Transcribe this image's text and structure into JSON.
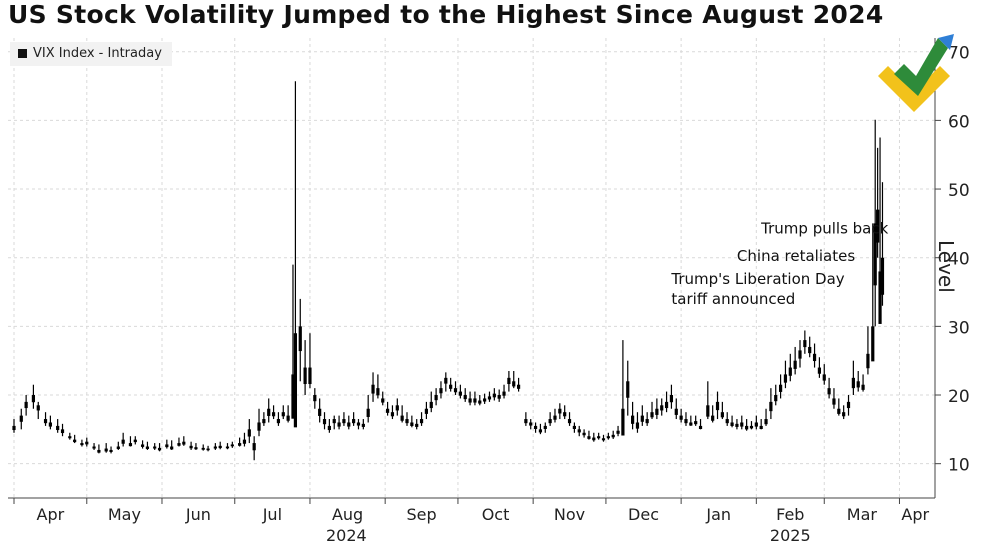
{
  "chart_data": {
    "type": "candlestick",
    "title": "US Stock Volatility Jumped to the Highest Since August 2024",
    "legend": "VIX Index - Intraday",
    "ylabel": "Level",
    "ylim": [
      5,
      72
    ],
    "yticks": [
      10,
      20,
      30,
      40,
      50,
      60,
      70
    ],
    "months": [
      {
        "label": "Apr",
        "start": 0
      },
      {
        "label": "May",
        "start": 30
      },
      {
        "label": "Jun",
        "start": 61
      },
      {
        "label": "Jul",
        "start": 91
      },
      {
        "label": "Aug",
        "start": 122
      },
      {
        "label": "Sep",
        "start": 153
      },
      {
        "label": "Oct",
        "start": 183
      },
      {
        "label": "Nov",
        "start": 214
      },
      {
        "label": "Dec",
        "start": 244
      },
      {
        "label": "Jan",
        "start": 275
      },
      {
        "label": "Feb",
        "start": 306
      },
      {
        "label": "Mar",
        "start": 334
      },
      {
        "label": "Apr",
        "start": 365
      }
    ],
    "years": [
      {
        "label": "2024",
        "day": 137
      },
      {
        "label": "2025",
        "day": 320
      }
    ],
    "total_days": 378,
    "points": [
      [
        0,
        15.5,
        14.5,
        16.5
      ],
      [
        3,
        17,
        15,
        18
      ],
      [
        5,
        19,
        17,
        20
      ],
      [
        8,
        20,
        18,
        21.5
      ],
      [
        10,
        18.5,
        16.5,
        19
      ],
      [
        13,
        16.5,
        15.5,
        17.5
      ],
      [
        15,
        16,
        15,
        17
      ],
      [
        18,
        15.5,
        14.5,
        16.5
      ],
      [
        20,
        15,
        14,
        15.8
      ],
      [
        23,
        14,
        13.5,
        14.5
      ],
      [
        25,
        13.5,
        13,
        14.2
      ],
      [
        28,
        13,
        12.5,
        13.5
      ],
      [
        30,
        13.2,
        12.5,
        13.8
      ],
      [
        33,
        12.5,
        12,
        13
      ],
      [
        35,
        12,
        11.5,
        12.8
      ],
      [
        38,
        12.2,
        11.6,
        13
      ],
      [
        40,
        12,
        11.5,
        12.5
      ],
      [
        43,
        12.5,
        12,
        13.2
      ],
      [
        45,
        13.5,
        12.5,
        14.5
      ],
      [
        48,
        13,
        12.5,
        14
      ],
      [
        50,
        13.5,
        12.8,
        14
      ],
      [
        53,
        12.8,
        12.2,
        13.4
      ],
      [
        55,
        12.5,
        12,
        13.2
      ],
      [
        58,
        12.5,
        12,
        13
      ],
      [
        60,
        12.3,
        11.8,
        13
      ],
      [
        63,
        12.8,
        12.2,
        13.5
      ],
      [
        65,
        12.5,
        12,
        13.4
      ],
      [
        68,
        13,
        12.5,
        13.8
      ],
      [
        70,
        13.2,
        12.6,
        14
      ],
      [
        73,
        12.6,
        12,
        13.2
      ],
      [
        75,
        12.4,
        12,
        13
      ],
      [
        78,
        12.3,
        11.9,
        12.8
      ],
      [
        80,
        12.2,
        11.8,
        12.6
      ],
      [
        83,
        12.5,
        12,
        13
      ],
      [
        85,
        12.6,
        12.1,
        13.2
      ],
      [
        88,
        12.5,
        12.1,
        13
      ],
      [
        90,
        12.8,
        12.3,
        13.2
      ],
      [
        93,
        13,
        12.5,
        13.8
      ],
      [
        95,
        13.5,
        12.5,
        14.5
      ],
      [
        97,
        15,
        13,
        16.5
      ],
      [
        99,
        13,
        10.5,
        14
      ],
      [
        101,
        16,
        14,
        18
      ],
      [
        103,
        16.5,
        15.5,
        17.5
      ],
      [
        105,
        18,
        16,
        19.5
      ],
      [
        107,
        17.5,
        16.5,
        18.5
      ],
      [
        109,
        16.5,
        15.5,
        17.5
      ],
      [
        111,
        17.5,
        16.5,
        18.5
      ],
      [
        113,
        17,
        16,
        18.5
      ],
      [
        115,
        23,
        17.5,
        39
      ],
      [
        116,
        29,
        20,
        65.7
      ],
      [
        118,
        30,
        22,
        34
      ],
      [
        120,
        24,
        20,
        28
      ],
      [
        122,
        24,
        21,
        29
      ],
      [
        124,
        20,
        18,
        21
      ],
      [
        126,
        18,
        16,
        19.5
      ],
      [
        128,
        16.5,
        15,
        17.5
      ],
      [
        130,
        15.5,
        14.5,
        16.5
      ],
      [
        132,
        16.5,
        15,
        17
      ],
      [
        134,
        16,
        15,
        17
      ],
      [
        136,
        16.5,
        15.5,
        17.5
      ],
      [
        138,
        16,
        15,
        17
      ],
      [
        140,
        16.5,
        15.5,
        17.5
      ],
      [
        142,
        16,
        15,
        16.5
      ],
      [
        144,
        15.8,
        15,
        16.5
      ],
      [
        146,
        18,
        16,
        20
      ],
      [
        148,
        21.5,
        19,
        23.3
      ],
      [
        150,
        21,
        19.5,
        23
      ],
      [
        152,
        19.5,
        18.5,
        20.5
      ],
      [
        154,
        18,
        17,
        19
      ],
      [
        156,
        17.5,
        16.5,
        18.5
      ],
      [
        158,
        18.5,
        17,
        19.5
      ],
      [
        160,
        17,
        16,
        18.5
      ],
      [
        162,
        16.5,
        15.5,
        17.5
      ],
      [
        164,
        16,
        15.3,
        17
      ],
      [
        166,
        15.8,
        15,
        16.5
      ],
      [
        168,
        16.5,
        15.5,
        17.5
      ],
      [
        170,
        18,
        16.5,
        19
      ],
      [
        172,
        19,
        17.5,
        20.5
      ],
      [
        174,
        20,
        18.5,
        21
      ],
      [
        176,
        21,
        19.5,
        22
      ],
      [
        178,
        22.5,
        20.5,
        23.3
      ],
      [
        180,
        21.5,
        20.5,
        22.5
      ],
      [
        182,
        21,
        20,
        22
      ],
      [
        184,
        20.5,
        19.5,
        21.5
      ],
      [
        186,
        20,
        19,
        21
      ],
      [
        188,
        19.5,
        18.5,
        20.5
      ],
      [
        190,
        19.5,
        18.5,
        20.5
      ],
      [
        192,
        19.2,
        18.5,
        20
      ],
      [
        194,
        19.5,
        18.7,
        20.2
      ],
      [
        196,
        19.8,
        19,
        20.5
      ],
      [
        198,
        20.2,
        19.2,
        21
      ],
      [
        200,
        20,
        19,
        20.8
      ],
      [
        202,
        20.5,
        19.5,
        21.5
      ],
      [
        204,
        22.5,
        20.5,
        23.5
      ],
      [
        206,
        22,
        21,
        23.5
      ],
      [
        208,
        21.5,
        20.5,
        22.5
      ],
      [
        211,
        16.5,
        15.5,
        17.5
      ],
      [
        213,
        16,
        15,
        16.5
      ],
      [
        215,
        15.5,
        14.5,
        16
      ],
      [
        217,
        15,
        14.3,
        15.8
      ],
      [
        219,
        15.5,
        14.5,
        16
      ],
      [
        221,
        16.5,
        15.5,
        17.5
      ],
      [
        223,
        17,
        16,
        18
      ],
      [
        225,
        18,
        16.5,
        18.8
      ],
      [
        227,
        17.5,
        16.5,
        18.5
      ],
      [
        229,
        16.5,
        15.5,
        17.5
      ],
      [
        231,
        15.5,
        14.5,
        16
      ],
      [
        233,
        15,
        14,
        15.5
      ],
      [
        235,
        14.5,
        13.8,
        15
      ],
      [
        237,
        14,
        13.5,
        14.8
      ],
      [
        239,
        13.8,
        13.2,
        14.5
      ],
      [
        241,
        14,
        13.5,
        14.5
      ],
      [
        243,
        13.7,
        13.2,
        14.2
      ],
      [
        245,
        14,
        13.5,
        14.5
      ],
      [
        247,
        14.2,
        13.6,
        14.8
      ],
      [
        249,
        14.8,
        14,
        15.5
      ],
      [
        251,
        18,
        15,
        28
      ],
      [
        253,
        22,
        17,
        25
      ],
      [
        255,
        17,
        15,
        19
      ],
      [
        257,
        16,
        14.5,
        17.5
      ],
      [
        259,
        17,
        15.5,
        18.5
      ],
      [
        261,
        16.5,
        15.5,
        17.5
      ],
      [
        263,
        17.5,
        16.5,
        19
      ],
      [
        265,
        18,
        16.5,
        19.5
      ],
      [
        267,
        18.5,
        17,
        19.5
      ],
      [
        269,
        19,
        17.5,
        20.5
      ],
      [
        271,
        20,
        18,
        21.5
      ],
      [
        273,
        18,
        16.5,
        19.5
      ],
      [
        275,
        17,
        16,
        18
      ],
      [
        277,
        16.5,
        15.5,
        17.5
      ],
      [
        279,
        16,
        15.5,
        17
      ],
      [
        281,
        16.2,
        15.5,
        17
      ],
      [
        283,
        15.5,
        15,
        16.5
      ],
      [
        286,
        18.5,
        16.5,
        22
      ],
      [
        288,
        17,
        16,
        18.5
      ],
      [
        290,
        19,
        16.5,
        20.5
      ],
      [
        292,
        17.5,
        16.5,
        19
      ],
      [
        294,
        16.5,
        15.5,
        17.5
      ],
      [
        296,
        16,
        15.3,
        17
      ],
      [
        298,
        15.8,
        15,
        16.5
      ],
      [
        300,
        16,
        15,
        17
      ],
      [
        302,
        15.5,
        14.8,
        16.5
      ],
      [
        304,
        15.5,
        15,
        16.2
      ],
      [
        306,
        16,
        15,
        17
      ],
      [
        308,
        15.5,
        15,
        16.5
      ],
      [
        310,
        16.5,
        15.5,
        18
      ],
      [
        312,
        19,
        16.5,
        21
      ],
      [
        314,
        20,
        18.5,
        21.5
      ],
      [
        316,
        21.5,
        19.5,
        23
      ],
      [
        318,
        23,
        21,
        25
      ],
      [
        320,
        24,
        22,
        26
      ],
      [
        322,
        25,
        23,
        27
      ],
      [
        324,
        26.5,
        24,
        28
      ],
      [
        326,
        28,
        26,
        29.4
      ],
      [
        328,
        27,
        25.5,
        28.5
      ],
      [
        330,
        26,
        24,
        27.5
      ],
      [
        332,
        24,
        22.5,
        25.5
      ],
      [
        334,
        23,
        21.5,
        24.5
      ],
      [
        336,
        21,
        19.5,
        22.5
      ],
      [
        338,
        19.5,
        18,
        21
      ],
      [
        340,
        18,
        17,
        19.5
      ],
      [
        342,
        17.5,
        16.5,
        18.5
      ],
      [
        344,
        19,
        17,
        20
      ],
      [
        346,
        22.5,
        20,
        25
      ],
      [
        348,
        22,
        20.5,
        23.5
      ],
      [
        350,
        21.5,
        20.5,
        23
      ],
      [
        352,
        26,
        23,
        30
      ],
      [
        354,
        30,
        28,
        45
      ],
      [
        355,
        45,
        30,
        60.1
      ],
      [
        356,
        47,
        40,
        56
      ],
      [
        357,
        38,
        32,
        57.5
      ],
      [
        358,
        40,
        33,
        51
      ]
    ],
    "annotations": [
      {
        "lines": [
          "Trump pulls back"
        ],
        "day": 308,
        "value": 43.5
      },
      {
        "lines": [
          "China retaliates"
        ],
        "day": 298,
        "value": 39.5
      },
      {
        "lines": [
          "Trump's Liberation Day",
          "tariff announced"
        ],
        "day": 271,
        "value": 36.2
      }
    ],
    "gap_label": ""
  },
  "colors": {
    "candle": "#000000",
    "grid": "#d9d9d9",
    "logo_green": "#2e8b3a",
    "logo_yellow": "#f2c21b",
    "logo_blue": "#2f7fd6"
  }
}
